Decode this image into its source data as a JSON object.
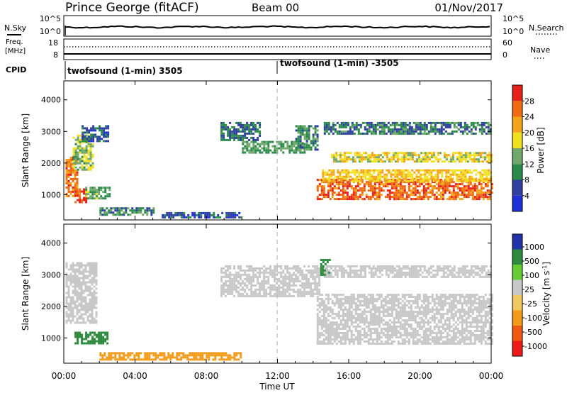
{
  "header": {
    "station": "Prince George (fitACF)",
    "beam": "Beam 00",
    "date": "01/Nov/2017"
  },
  "nsky_panel": {
    "left_label": "N.Sky",
    "right_label": "N.Search",
    "left_ticks": [
      "10^5",
      "10^0"
    ],
    "right_ticks": [
      "10^5",
      "10^0"
    ]
  },
  "freq_panel": {
    "left_label_1": "Freq.",
    "left_label_2": "[MHz]",
    "right_label": "Nave",
    "left_ticks": [
      "18",
      "8"
    ],
    "right_ticks": [
      "60",
      "0"
    ]
  },
  "cpid_panel": {
    "label": "CPID",
    "segments": [
      "twofsound (1-min) 3505",
      "twofsound (1-min) -3505"
    ]
  },
  "colors": {
    "power": [
      "#1f2fd6",
      "#2f3f9e",
      "#2a8a4a",
      "#6fa86a",
      "#f0e020",
      "#f4a418",
      "#f06a12",
      "#e8201a"
    ],
    "velocity": [
      "#ee1a1a",
      "#f05a10",
      "#f39a18",
      "#f2c860",
      "#c8c8c8",
      "#66cc33",
      "#2e8b3e",
      "#2233aa"
    ],
    "dashed_line": "#bbbbbb"
  },
  "chart_data": [
    {
      "type": "heatmap",
      "name": "power",
      "xlabel": "",
      "ylabel": "Slant Range [km]",
      "x_range": [
        "00:00",
        "24:00"
      ],
      "ylim": [
        200,
        4600
      ],
      "yticks": [
        1000,
        2000,
        3000,
        4000
      ],
      "colorbar": {
        "label": "Power [dB]",
        "range": [
          0,
          32
        ],
        "ticks": [
          4,
          8,
          12,
          16,
          20,
          24,
          28
        ]
      },
      "regions": [
        {
          "t0": 0.1,
          "t1": 0.8,
          "r0": 950,
          "r1": 2200,
          "value": 25
        },
        {
          "t0": 0.5,
          "t1": 1.6,
          "r0": 1800,
          "r1": 2900,
          "value": 15
        },
        {
          "t0": 0.6,
          "t1": 1.2,
          "r0": 780,
          "r1": 1200,
          "value": 27
        },
        {
          "t0": 1.2,
          "t1": 2.6,
          "r0": 900,
          "r1": 1250,
          "value": 13
        },
        {
          "t0": 1.0,
          "t1": 2.5,
          "r0": 2700,
          "r1": 3200,
          "value": 7
        },
        {
          "t0": 2.0,
          "t1": 5.0,
          "r0": 350,
          "r1": 600,
          "value": 10
        },
        {
          "t0": 5.5,
          "t1": 10.0,
          "r0": 300,
          "r1": 450,
          "value": 6
        },
        {
          "t0": 8.8,
          "t1": 11.0,
          "r0": 2700,
          "r1": 3300,
          "value": 8
        },
        {
          "t0": 10.0,
          "t1": 13.5,
          "r0": 2300,
          "r1": 2700,
          "value": 12
        },
        {
          "t0": 13.0,
          "t1": 14.3,
          "r0": 2400,
          "r1": 3200,
          "value": 10
        },
        {
          "t0": 14.2,
          "t1": 24.0,
          "r0": 850,
          "r1": 1500,
          "value": 26
        },
        {
          "t0": 14.5,
          "t1": 24.0,
          "r0": 1400,
          "r1": 1800,
          "value": 20
        },
        {
          "t0": 15.0,
          "t1": 24.0,
          "r0": 2050,
          "r1": 2350,
          "value": 18
        },
        {
          "t0": 14.6,
          "t1": 24.0,
          "r0": 2900,
          "r1": 3300,
          "value": 9
        }
      ]
    },
    {
      "type": "heatmap",
      "name": "velocity",
      "xlabel": "Time UT",
      "ylabel": "Slant Range [km]",
      "x_range": [
        "00:00",
        "24:00"
      ],
      "xticks": [
        "00:00",
        "04:00",
        "08:00",
        "12:00",
        "16:00",
        "20:00",
        "00:00"
      ],
      "ylim": [
        200,
        4600
      ],
      "yticks": [
        1000,
        2000,
        3000,
        4000
      ],
      "colorbar": {
        "label": "Velocity [m s-1]",
        "ticks": [
          "1000",
          "500",
          "100",
          "25",
          "-25",
          "-100",
          "-500",
          "-1000"
        ]
      },
      "regions": [
        {
          "t0": 0.1,
          "t1": 1.8,
          "r0": 1500,
          "r1": 3400,
          "value": 0
        },
        {
          "t0": 0.6,
          "t1": 2.5,
          "r0": 800,
          "r1": 1200,
          "value": 150
        },
        {
          "t0": 2.0,
          "t1": 10.0,
          "r0": 300,
          "r1": 550,
          "value": -50
        },
        {
          "t0": 8.8,
          "t1": 14.3,
          "r0": 2300,
          "r1": 3300,
          "value": 0
        },
        {
          "t0": 14.2,
          "t1": 24.0,
          "r0": 850,
          "r1": 2400,
          "value": 0
        },
        {
          "t0": 14.4,
          "t1": 14.9,
          "r0": 3000,
          "r1": 3500,
          "value": 150
        },
        {
          "t0": 14.6,
          "t1": 24.0,
          "r0": 2900,
          "r1": 3300,
          "value": 0
        }
      ]
    }
  ]
}
